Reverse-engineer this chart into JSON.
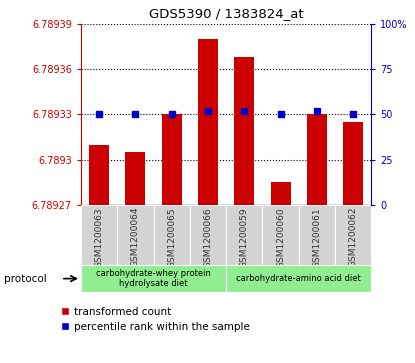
{
  "title": "GDS5390 / 1383824_at",
  "samples": [
    "GSM1200063",
    "GSM1200064",
    "GSM1200065",
    "GSM1200066",
    "GSM1200059",
    "GSM1200060",
    "GSM1200061",
    "GSM1200062"
  ],
  "bar_values": [
    6.78931,
    6.789305,
    6.78933,
    6.78938,
    6.789368,
    6.789285,
    6.78933,
    6.789325
  ],
  "percentile_values": [
    50,
    50,
    50,
    52,
    52,
    50,
    52,
    50
  ],
  "ymin": 6.78927,
  "ymax": 6.78939,
  "yticks": [
    6.78927,
    6.7893,
    6.78933,
    6.78936,
    6.78939
  ],
  "ytick_labels": [
    "6.78927",
    "6.7893",
    "6.78933",
    "6.78936",
    "6.78939"
  ],
  "y2min": 0,
  "y2max": 100,
  "y2ticks": [
    0,
    25,
    50,
    75,
    100
  ],
  "y2tick_labels": [
    "0",
    "25",
    "50",
    "75",
    "100%"
  ],
  "bar_color": "#cc0000",
  "percentile_color": "#0000cc",
  "left_axis_color": "#cc0000",
  "right_axis_color": "#0000cc",
  "proto_labels": [
    "carbohydrate-whey protein\nhydrolysate diet",
    "carbohydrate-amino acid diet"
  ],
  "proto_ranges": [
    [
      0,
      4
    ],
    [
      4,
      8
    ]
  ],
  "proto_color": "#90ee90",
  "proto_label": "protocol",
  "legend_items": [
    {
      "color": "#cc0000",
      "label": "transformed count"
    },
    {
      "color": "#0000cc",
      "label": "percentile rank within the sample"
    }
  ],
  "grid_linestyle": ":",
  "grid_color": "black",
  "grid_linewidth": 0.8,
  "bar_width": 0.55,
  "xticklabel_color": "#333333",
  "label_area_color": "#d3d3d3"
}
